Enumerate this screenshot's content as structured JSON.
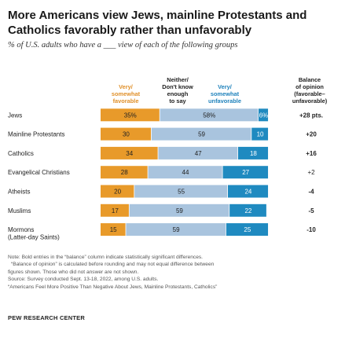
{
  "title": "More Americans view Jews, mainline Protestants and Catholics favorably rather than unfavorably",
  "subtitle": "% of U.S. adults who have a ___ view of each of the following groups",
  "colors": {
    "favorable": "#e89a2a",
    "neither": "#a9c4de",
    "unfavorable": "#1f8ac0",
    "favorable_header": "#e0902a",
    "unfavorable_header": "#1f82bc"
  },
  "chart_data": {
    "type": "bar",
    "stacked": true,
    "categories": [
      "Jews",
      "Mainline Protestants",
      "Catholics",
      "Evangelical Christians",
      "Atheists",
      "Muslims",
      "Mormons\n(Latter-day Saints)"
    ],
    "series": [
      {
        "name": "Very/\nsomewhat\nfavorable",
        "labels": [
          "35%",
          "30",
          "34",
          "28",
          "20",
          "17",
          "15"
        ],
        "values": [
          35,
          30,
          34,
          28,
          20,
          17,
          15
        ]
      },
      {
        "name": "Neither/\nDon't know\nenough\nto say",
        "labels": [
          "58%",
          "59",
          "47",
          "44",
          "55",
          "59",
          "59"
        ],
        "values": [
          58,
          59,
          47,
          44,
          55,
          59,
          59
        ]
      },
      {
        "name": "Very/\nsomewhat\nunfavorable",
        "labels": [
          "6%",
          "10",
          "18",
          "27",
          "24",
          "22",
          "25"
        ],
        "values": [
          6,
          10,
          18,
          27,
          24,
          22,
          25
        ]
      }
    ],
    "balance": {
      "header": "Balance\nof opinion\n(favorable–\nunfavorable)",
      "labels": [
        "+28 pts.",
        "+20",
        "+16",
        "+2",
        "-4",
        "-5",
        "-10"
      ],
      "bold": [
        true,
        true,
        true,
        false,
        true,
        true,
        true
      ]
    },
    "xlim": [
      0,
      100
    ]
  },
  "notes": [
    "Note: Bold entries in the “balance” column indicate statistically significant differences.",
    "“Balance of opinion” is calculated before rounding and may not equal difference between",
    "figures shown. Those who did not answer are not shown.",
    "Source: Survey conducted Sept. 13-18, 2022, among U.S. adults.",
    "“Americans Feel More Positive Than Negative About Jews, Mainline Protestants, Catholics”"
  ],
  "source_org": "PEW RESEARCH CENTER"
}
